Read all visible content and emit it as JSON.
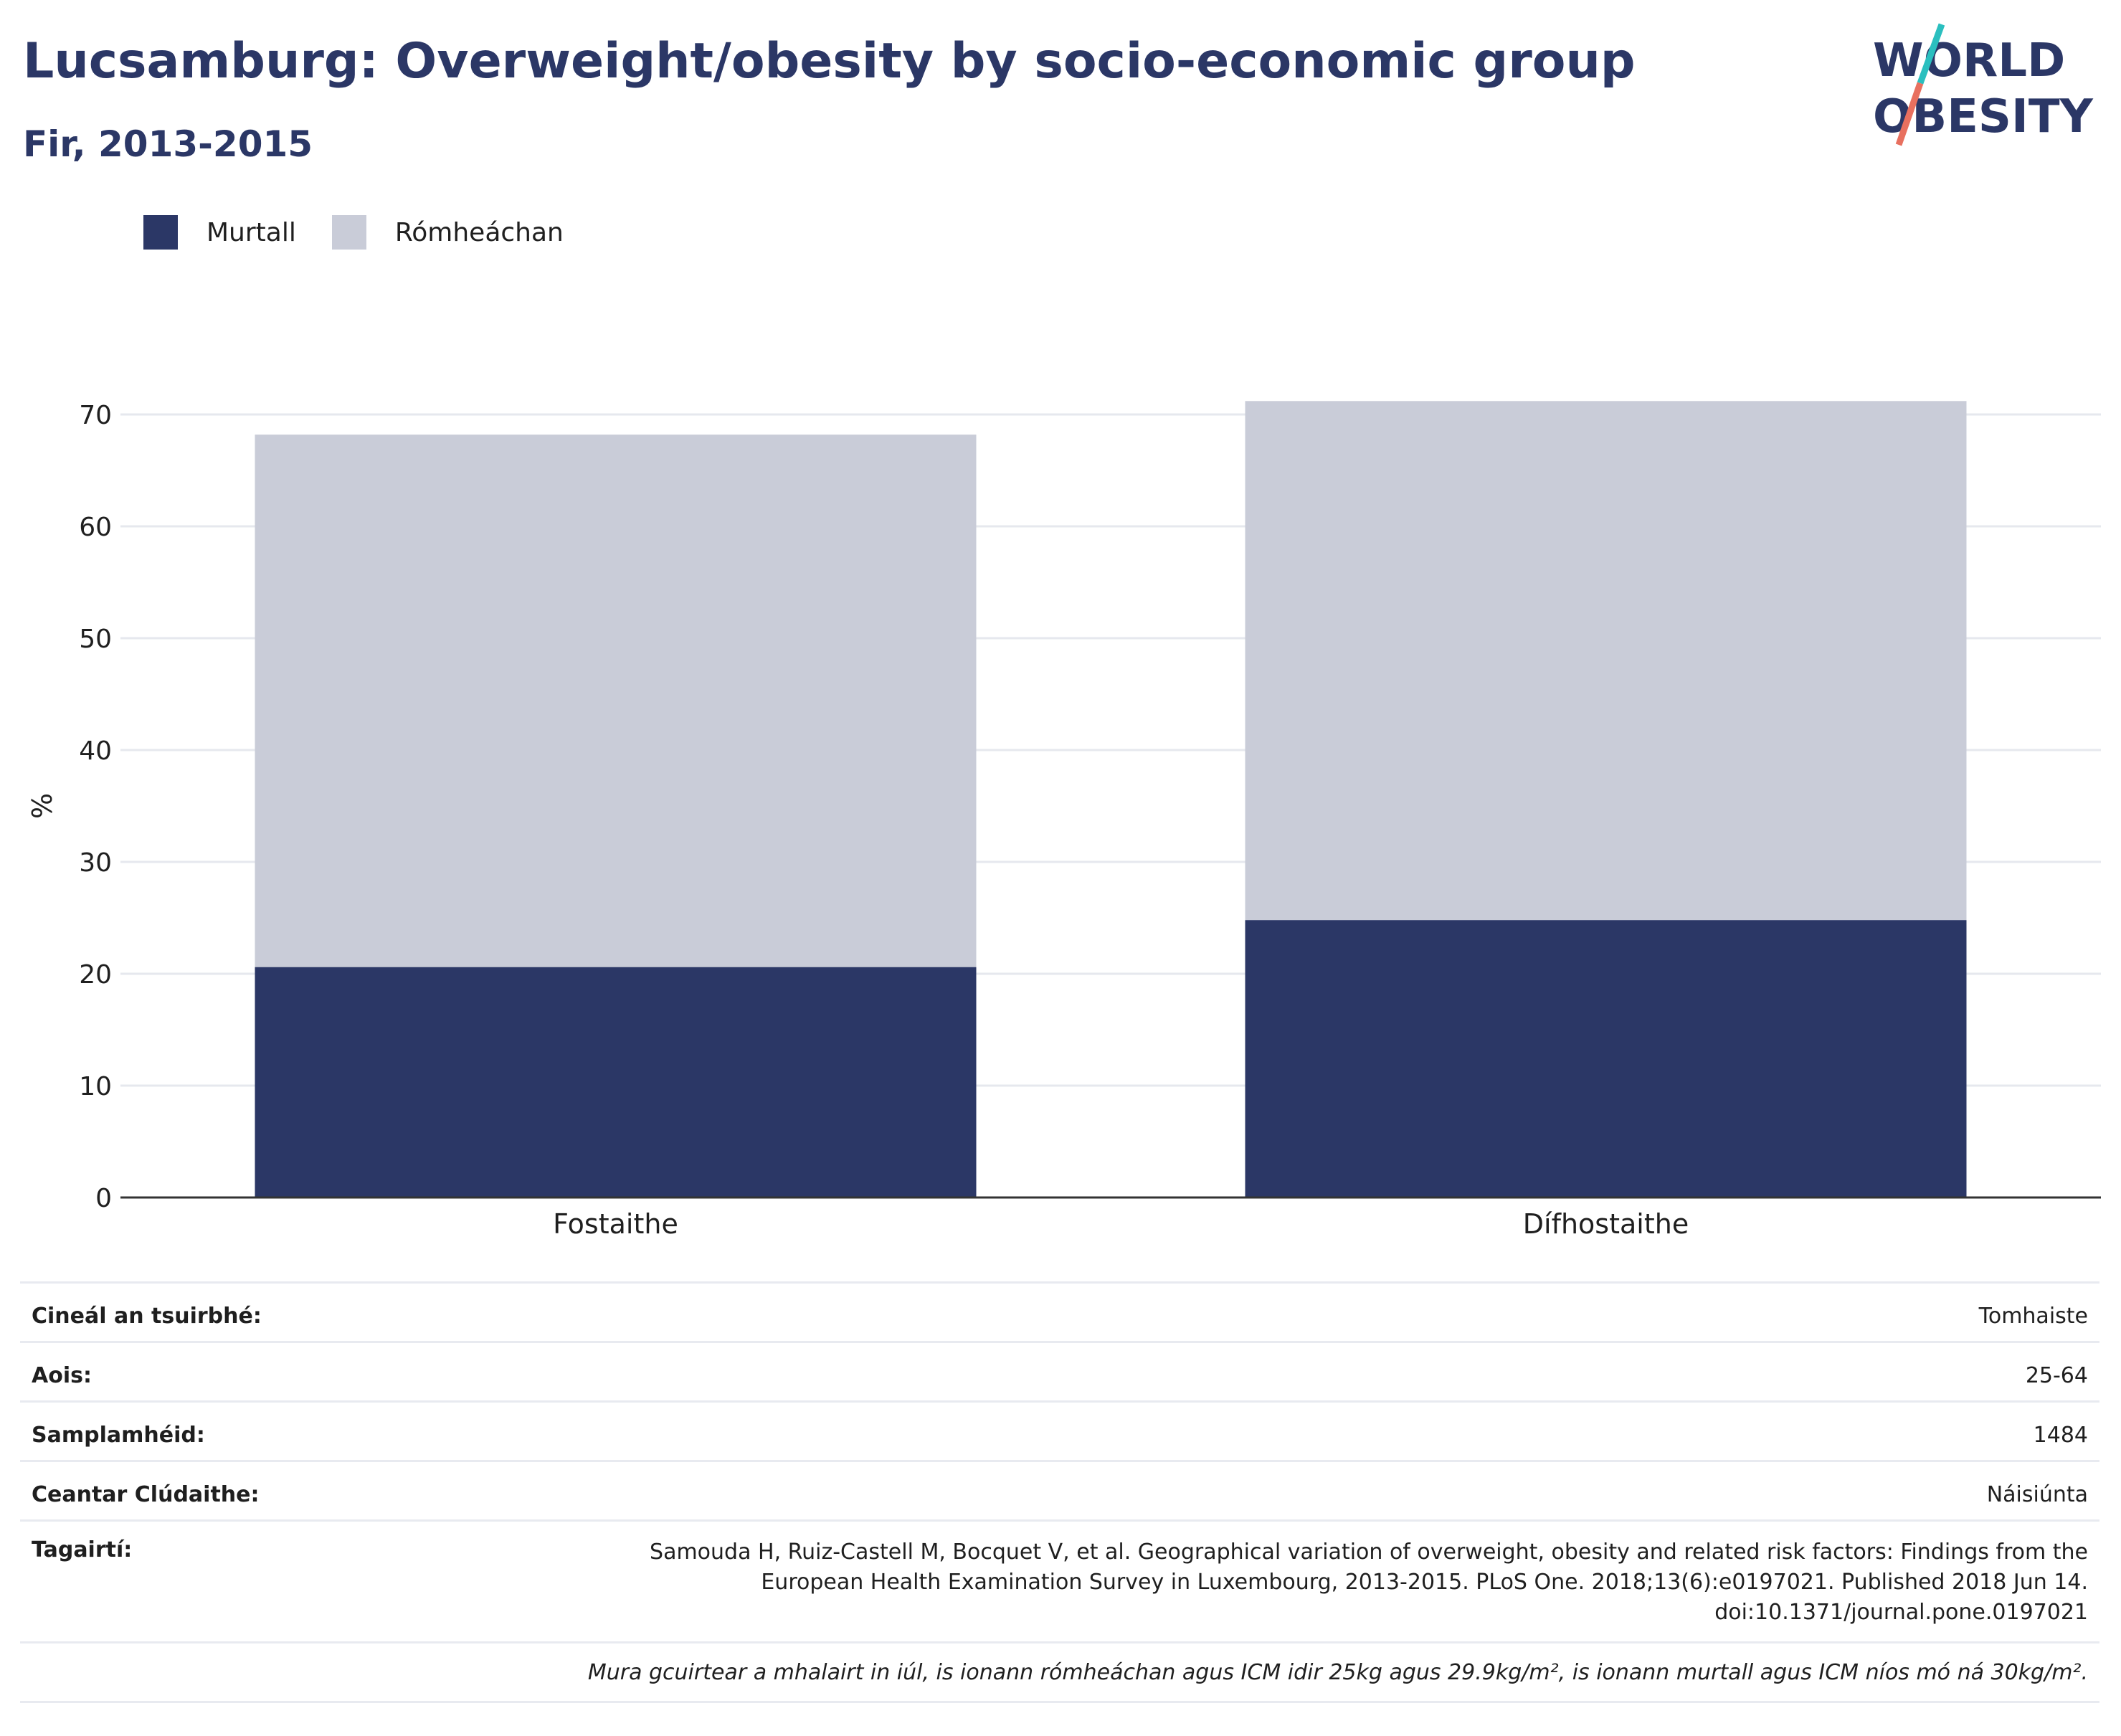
{
  "header": {
    "title": "Lucsamburg: Overweight/obesity by socio-economic group",
    "subtitle": "Fir, 2013-2015"
  },
  "logo": {
    "line1": "WORLD",
    "line2": "OBESITY"
  },
  "colors": {
    "obese": "#2b3766",
    "overweight": "#c9ccd8",
    "title": "#2b3766",
    "grid": "#e6e8ee",
    "logo_teal": "#2bbfbf",
    "logo_coral": "#e8705f"
  },
  "chart_data": {
    "type": "bar",
    "stacked": true,
    "categories": [
      "Fostaithe",
      "Dífhostaithe"
    ],
    "series": [
      {
        "name": "Murtall",
        "values": [
          20.6,
          24.8
        ]
      },
      {
        "name": "Rómheáchan",
        "values": [
          47.6,
          46.4
        ]
      }
    ],
    "ylabel": "%",
    "ylim": [
      0,
      72
    ],
    "yticks": [
      0,
      10,
      20,
      30,
      40,
      50,
      60,
      70
    ],
    "grid": true,
    "legend_position": "top-left"
  },
  "meta": {
    "rows": [
      {
        "key": "Cineál an tsuirbhé:",
        "value": "Tomhaiste"
      },
      {
        "key": "Aois:",
        "value": "25-64"
      },
      {
        "key": "Samplamhéid:",
        "value": "1484"
      },
      {
        "key": "Ceantar Clúdaithe:",
        "value": "Náisiúnta"
      }
    ],
    "reference": {
      "key": "Tagairtí:",
      "lines": [
        "Samouda H, Ruiz-Castell M, Bocquet V, et al. Geographical variation of overweight, obesity and related risk factors: Findings from the",
        "European Health Examination Survey in Luxembourg, 2013-2015. PLoS One. 2018;13(6):e0197021. Published 2018 Jun 14.",
        "doi:10.1371/journal.pone.0197021"
      ]
    },
    "note": "Mura gcuirtear a mhalairt in iúl, is ionann rómheáchan agus ICM idir 25kg agus 29.9kg/m², is ionann murtall agus ICM níos mó ná 30kg/m²."
  }
}
